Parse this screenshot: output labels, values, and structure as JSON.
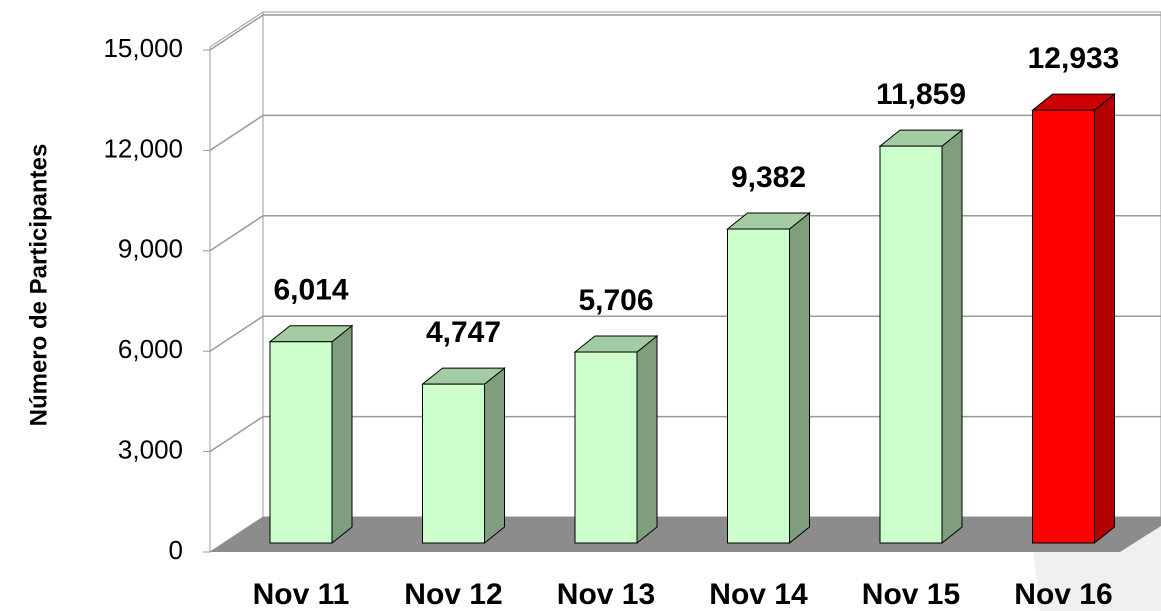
{
  "chart_data": {
    "type": "bar3d",
    "y_label": "Número de Participantes",
    "categories": [
      "Nov 11",
      "Nov 12",
      "Nov 13",
      "Nov 14",
      "Nov 15",
      "Nov 16"
    ],
    "values": [
      6014,
      4747,
      5706,
      9382,
      11859,
      12933
    ],
    "value_labels": [
      "6,014",
      "4,747",
      "5,706",
      "9,382",
      "11,859",
      "12,933"
    ],
    "colors": [
      "#ccffcc",
      "#ccffcc",
      "#ccffcc",
      "#ccffcc",
      "#ccffcc",
      "#ff0000"
    ],
    "ylim": [
      0,
      15000
    ],
    "yticks": [
      0,
      {
        "value": 3000,
        "label": "3,000"
      },
      {
        "value": 6000,
        "label": "6,000"
      },
      {
        "value": 9000,
        "label": "9,000"
      },
      {
        "value": 12000,
        "label": "12,000"
      },
      {
        "value": 15000,
        "label": "15,000"
      }
    ],
    "grid": true
  }
}
